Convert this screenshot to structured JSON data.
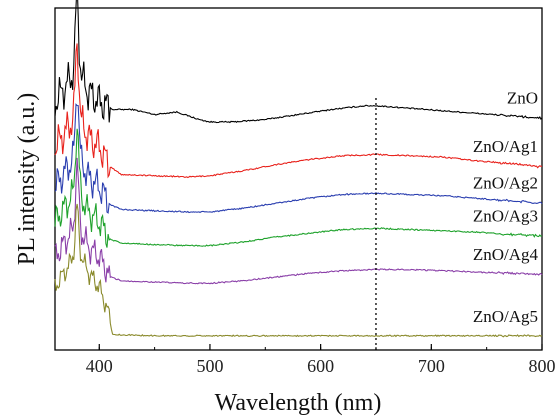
{
  "chart_data": {
    "type": "line",
    "title": "",
    "xlabel": "Wavelength (nm)",
    "ylabel": "PL intensity (a.u.)",
    "xlim": [
      360,
      800
    ],
    "x_ticks": [
      400,
      500,
      600,
      700,
      800
    ],
    "y_ticks_shown": false,
    "grid": false,
    "legend": "inline labels at right of each curve",
    "annotations": [
      {
        "type": "vertical-dotted-line",
        "x": 650
      }
    ],
    "series": [
      {
        "name": "ZnO",
        "color": "#000000",
        "offset": 92,
        "peak_height": 85,
        "sharp_edge_x": 410,
        "x": [
          360,
          372,
          380,
          390,
          400,
          412,
          430,
          450,
          470,
          490,
          500,
          520,
          550,
          580,
          610,
          640,
          650,
          680,
          710,
          740,
          770,
          800
        ],
        "values": [
          96,
          104,
          110,
          100,
          96,
          93,
          93,
          91,
          92,
          89,
          88,
          88,
          89,
          91,
          93,
          94.5,
          94.5,
          93.5,
          92.5,
          91.5,
          90.5,
          89.5
        ]
      },
      {
        "name": "ZnO/Ag1",
        "color": "#e8221c",
        "offset": 72,
        "peak_height": 81,
        "sharp_edge_x": 410,
        "x": [
          360,
          372,
          380,
          390,
          400,
          410,
          420,
          450,
          480,
          500,
          530,
          560,
          590,
          620,
          650,
          680,
          710,
          740,
          770,
          800
        ],
        "values": [
          78,
          86,
          92,
          82,
          78,
          70,
          67,
          66.5,
          66,
          66.5,
          68.5,
          71,
          73,
          74.5,
          75,
          74.5,
          74,
          72.5,
          71.5,
          70
        ]
      },
      {
        "name": "ZnO/Ag2",
        "color": "#2b3fb0",
        "offset": 57,
        "peak_height": 75,
        "sharp_edge_x": 410,
        "x": [
          360,
          372,
          380,
          390,
          400,
          410,
          420,
          450,
          480,
          500,
          530,
          560,
          590,
          620,
          650,
          680,
          710,
          740,
          770,
          800
        ],
        "values": [
          62,
          70,
          76,
          66,
          62,
          55,
          53,
          52.5,
          52,
          52,
          53.5,
          55.5,
          57.5,
          59,
          59.5,
          59,
          58.5,
          57.5,
          56.5,
          55.5
        ]
      },
      {
        "name": "ZnO/Ag3",
        "color": "#1fa22c",
        "offset": 42,
        "peak_height": 70,
        "sharp_edge_x": 410,
        "x": [
          360,
          372,
          380,
          390,
          400,
          410,
          420,
          450,
          480,
          500,
          530,
          560,
          590,
          620,
          650,
          680,
          710,
          740,
          770,
          800
        ],
        "values": [
          48,
          56,
          62,
          52,
          48,
          41,
          39.5,
          39,
          38.5,
          38.5,
          40,
          42,
          43.5,
          45,
          45.5,
          45,
          44.5,
          44,
          43,
          42.5
        ]
      },
      {
        "name": "ZnO/Ag4",
        "color": "#8a3fa8",
        "offset": 27,
        "peak_height": 64,
        "sharp_edge_x": 410,
        "x": [
          360,
          372,
          380,
          390,
          400,
          410,
          420,
          450,
          480,
          500,
          530,
          560,
          590,
          620,
          650,
          680,
          710,
          740,
          770,
          800
        ],
        "values": [
          34,
          42,
          48,
          38,
          34,
          26,
          24.5,
          24,
          23.5,
          23.5,
          24.5,
          26,
          27.5,
          28.5,
          29,
          29,
          28.5,
          28,
          27.5,
          27
        ]
      },
      {
        "name": "ZnO/Ag5",
        "color": "#8a8a2c",
        "offset": 2,
        "peak_height": 46,
        "sharp_edge_x": 410,
        "x": [
          360,
          372,
          380,
          390,
          400,
          408,
          412,
          450,
          500,
          550,
          600,
          650,
          700,
          750,
          800
        ],
        "values": [
          22,
          30,
          38,
          28,
          22,
          12,
          3,
          2.5,
          2.5,
          2.5,
          2.5,
          2.5,
          2.5,
          2.5,
          2.5
        ]
      }
    ]
  }
}
